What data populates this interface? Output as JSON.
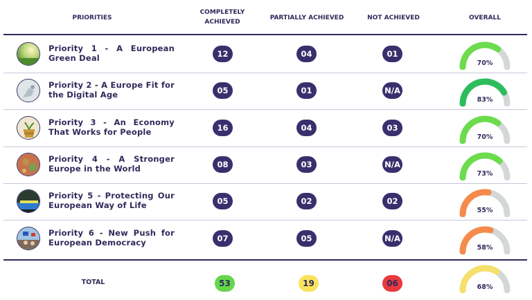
{
  "headers": {
    "priorities": "PRIORITIES",
    "completely_achieved": "COMPLETELY ACHIEVED",
    "partially_achieved": "PARTIALLY ACHIEVED",
    "not_achieved": "NOT ACHIEVED",
    "overall": "OVERALL"
  },
  "colors": {
    "accent": "#2f2a5b",
    "pill": "#3a2f6d",
    "gauge_track": "#d3d8d6",
    "green_light": "#6cdc4d",
    "green_dark": "#2dbd5c",
    "orange": "#f58a4b",
    "yellow": "#f5e06b",
    "total_green": "#66d64a",
    "total_yellow": "#f9e35c",
    "total_red": "#e83a3e"
  },
  "rows": [
    {
      "title": "Priority 1 - A European Green Deal",
      "icon": "green-field-photo",
      "completely": "12",
      "partially": "04",
      "not": "01",
      "overall": "70%",
      "fraction": 0.7,
      "color": "#6cdc4d"
    },
    {
      "title": "Priority 2 - A Europe Fit for the Digital Age",
      "icon": "robot-hand-photo",
      "completely": "05",
      "partially": "01",
      "not": "N/A",
      "overall": "83%",
      "fraction": 0.83,
      "color": "#2dbd5c"
    },
    {
      "title": "Priority 3 - An Economy That Works for People",
      "icon": "coins-plant-photo",
      "completely": "16",
      "partially": "04",
      "not": "03",
      "overall": "70%",
      "fraction": 0.7,
      "color": "#6cdc4d"
    },
    {
      "title": "Priority 4 - A Stronger Europe in the World",
      "icon": "world-map-photo",
      "completely": "08",
      "partially": "03",
      "not": "N/A",
      "overall": "73%",
      "fraction": 0.73,
      "color": "#6cdc4d"
    },
    {
      "title": "Priority 5 - Protecting Our European Way of Life",
      "icon": "police-car-photo",
      "completely": "05",
      "partially": "02",
      "not": "02",
      "overall": "55%",
      "fraction": 0.55,
      "color": "#f58a4b"
    },
    {
      "title": "Priority 6 - New Push for European Democracy",
      "icon": "crowd-flags-photo",
      "completely": "07",
      "partially": "05",
      "not": "N/A",
      "overall": "58%",
      "fraction": 0.58,
      "color": "#f58a4b"
    }
  ],
  "total": {
    "label": "TOTAL",
    "completely": "53",
    "partially": "19",
    "not": "06",
    "overall": "68%",
    "fraction": 0.68,
    "color": "#f5e06b"
  }
}
